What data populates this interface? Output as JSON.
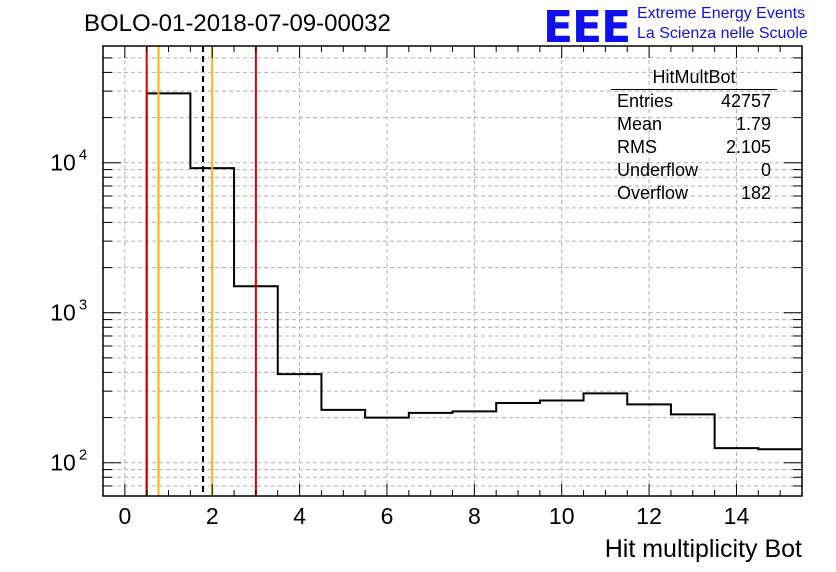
{
  "title": "BOLO-01-2018-07-09-00032",
  "logo": {
    "mark": "EEE",
    "line1": "Extreme Energy Events",
    "line2": "La Scienza nelle Scuole",
    "color": "#1010ee"
  },
  "stats_box": {
    "name": "HitMultBot",
    "rows": [
      {
        "label": "Entries",
        "value": "42757"
      },
      {
        "label": "Mean",
        "value": "1.79"
      },
      {
        "label": "RMS",
        "value": "2.105"
      },
      {
        "label": "Underflow",
        "value": "0"
      },
      {
        "label": "Overflow",
        "value": "182"
      }
    ]
  },
  "chart_data": {
    "type": "histogram",
    "title": "BOLO-01-2018-07-09-00032",
    "xlabel": "Hit multiplicity Bot",
    "ylabel": "",
    "xlim": [
      -0.5,
      15.5
    ],
    "ylim": [
      60,
      60000
    ],
    "ylog": true,
    "grid": true,
    "bin_edges": [
      0.5,
      1.5,
      2.5,
      3.5,
      4.5,
      5.5,
      6.5,
      7.5,
      8.5,
      9.5,
      10.5,
      11.5,
      12.5,
      13.5,
      14.5,
      15.5
    ],
    "values": [
      29000,
      9200,
      1500,
      390,
      225,
      200,
      215,
      220,
      250,
      260,
      290,
      245,
      210,
      125,
      123
    ],
    "x_ticks": [
      0,
      2,
      4,
      6,
      8,
      10,
      12,
      14
    ],
    "y_ticks": [
      {
        "value": 100,
        "base": "10",
        "exp": "2"
      },
      {
        "value": 1000,
        "base": "10",
        "exp": "3"
      },
      {
        "value": 10000,
        "base": "10",
        "exp": "4"
      }
    ],
    "vertical_lines": [
      {
        "x": 0.5,
        "color": "#e00000",
        "style": "solid"
      },
      {
        "x": 0.77,
        "color": "#ffb000",
        "style": "solid"
      },
      {
        "x": 1.79,
        "color": "#000000",
        "style": "dashed"
      },
      {
        "x": 2.0,
        "color": "#ffb000",
        "style": "solid"
      },
      {
        "x": 3.0,
        "color": "#e00000",
        "style": "solid"
      }
    ]
  }
}
